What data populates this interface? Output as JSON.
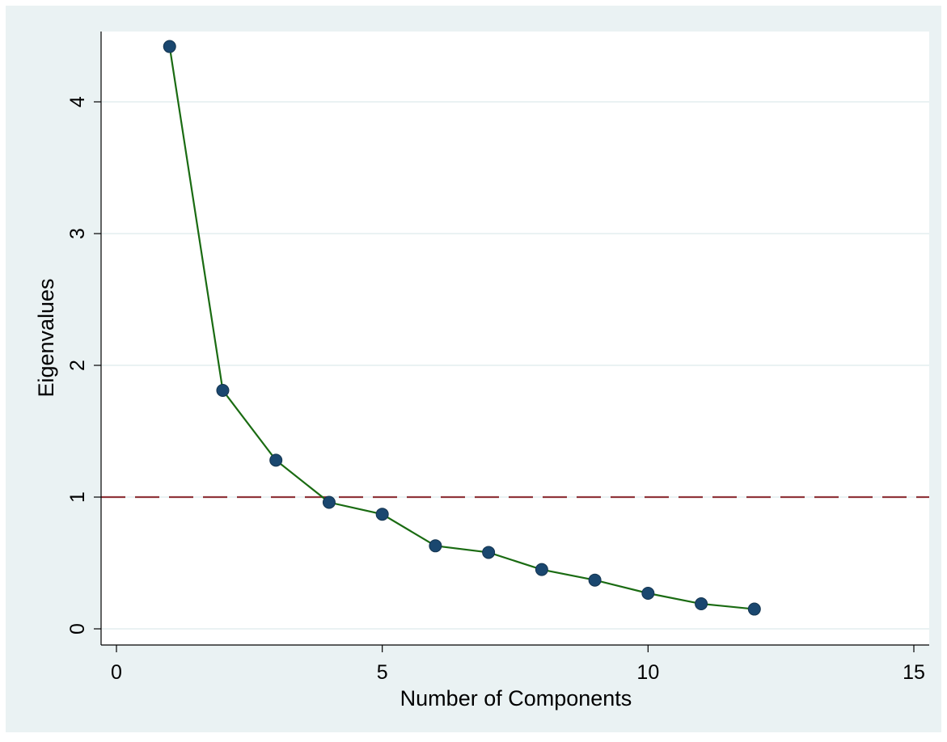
{
  "chart_data": {
    "type": "line",
    "title": "",
    "xlabel": "Number of Components",
    "ylabel": "Eigenvalues",
    "xlim": [
      0,
      15
    ],
    "ylim": [
      0,
      4.5
    ],
    "x_ticks": [
      "0",
      "5",
      "10",
      "15"
    ],
    "y_ticks": [
      "0",
      "1",
      "2",
      "3",
      "4"
    ],
    "grid": "horizontal",
    "legend": "none",
    "series": [
      {
        "x": [
          1,
          2,
          3,
          4,
          5,
          6,
          7,
          8,
          9,
          10,
          11,
          12
        ],
        "y": [
          4.42,
          1.81,
          1.28,
          0.96,
          0.87,
          0.63,
          0.58,
          0.45,
          0.37,
          0.27,
          0.19,
          0.15
        ],
        "line_color": "#1a6b12",
        "marker_color": "#1a476f"
      }
    ],
    "reference_line": {
      "y": 1,
      "style": "dashed",
      "color": "#90353b"
    }
  },
  "colors": {
    "outer_background": "#eaf2f3",
    "plot_background": "#ffffff",
    "gridline": "#eaf2f3"
  }
}
